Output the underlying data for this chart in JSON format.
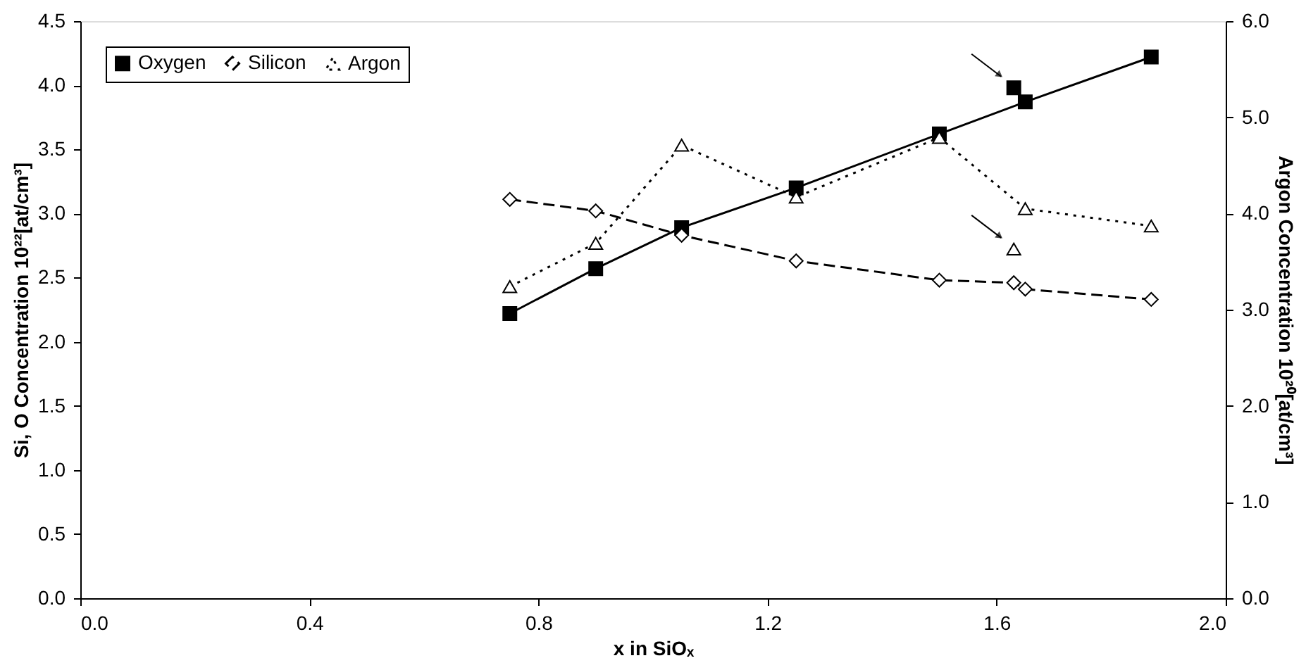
{
  "chart_data": {
    "type": "line",
    "xlabel": "x in SiOₓ",
    "ylabel": "Si, O Concentration 10²²[at/cm³]",
    "y2label": "Argon Concentration 10²⁰[at/cm³]",
    "xlim": [
      0,
      2
    ],
    "xticks": [
      {
        "value": 0,
        "label": "0.0"
      },
      {
        "value": 0.4,
        "label": "0.4"
      },
      {
        "value": 0.8,
        "label": "0.8"
      },
      {
        "value": 1.2,
        "label": "1.2"
      },
      {
        "value": 1.6,
        "label": "1.6"
      },
      {
        "value": 2,
        "label": "2.0"
      }
    ],
    "ylim": [
      0,
      4.5
    ],
    "yticks": [
      {
        "value": 0,
        "label": "0.0"
      },
      {
        "value": 0.5,
        "label": "0.5"
      },
      {
        "value": 1,
        "label": "1.0"
      },
      {
        "value": 1.5,
        "label": "1.5"
      },
      {
        "value": 2,
        "label": "2.0"
      },
      {
        "value": 2.5,
        "label": "2.5"
      },
      {
        "value": 3,
        "label": "3.0"
      },
      {
        "value": 3.5,
        "label": "3.5"
      },
      {
        "value": 4,
        "label": "4.0"
      },
      {
        "value": 4.5,
        "label": "4.5"
      }
    ],
    "y2lim": [
      0,
      6
    ],
    "y2ticks": [
      {
        "value": 0,
        "label": "0.0"
      },
      {
        "value": 1,
        "label": "1.0"
      },
      {
        "value": 2,
        "label": "2.0"
      },
      {
        "value": 3,
        "label": "3.0"
      },
      {
        "value": 4,
        "label": "4.0"
      },
      {
        "value": 5,
        "label": "5.0"
      },
      {
        "value": 6,
        "label": "6.0"
      }
    ],
    "grid": false,
    "legend": "top left",
    "series": [
      {
        "name": "Oxygen",
        "color": "#000000",
        "marker": "square",
        "line_style": "solid",
        "x": [
          0.75,
          0.9,
          1.05,
          1.25,
          1.5,
          1.65,
          1.87
        ],
        "values": [
          2.22,
          2.57,
          2.89,
          3.2,
          3.62,
          3.87,
          4.22
        ]
      },
      {
        "name": "Silicon",
        "color": "#000000",
        "marker": "diamond",
        "line_style": "dashed",
        "x": [
          0.75,
          0.9,
          1.05,
          1.25,
          1.5,
          1.63,
          1.65,
          1.87
        ],
        "values": [
          3.11,
          3.02,
          2.83,
          2.63,
          2.48,
          2.46,
          2.41,
          2.33
        ]
      },
      {
        "name": "Argon",
        "color": "#000000",
        "marker": "triangle",
        "line_style": "dotted",
        "axis": "y2",
        "x": [
          0.75,
          0.9,
          1.05,
          1.25,
          1.5,
          1.65,
          1.87
        ],
        "values": [
          3.24,
          3.69,
          4.71,
          4.17,
          4.79,
          4.05,
          3.87
        ]
      },
      {
        "type": "scatter",
        "color": "#000000",
        "marker": "square",
        "x": [
          1.63
        ],
        "values": [
          3.98
        ]
      },
      {
        "type": "scatter",
        "color": "#000000",
        "marker": "triangle",
        "axis": "y2",
        "x": [
          1.63
        ],
        "values": [
          3.63
        ]
      }
    ]
  }
}
